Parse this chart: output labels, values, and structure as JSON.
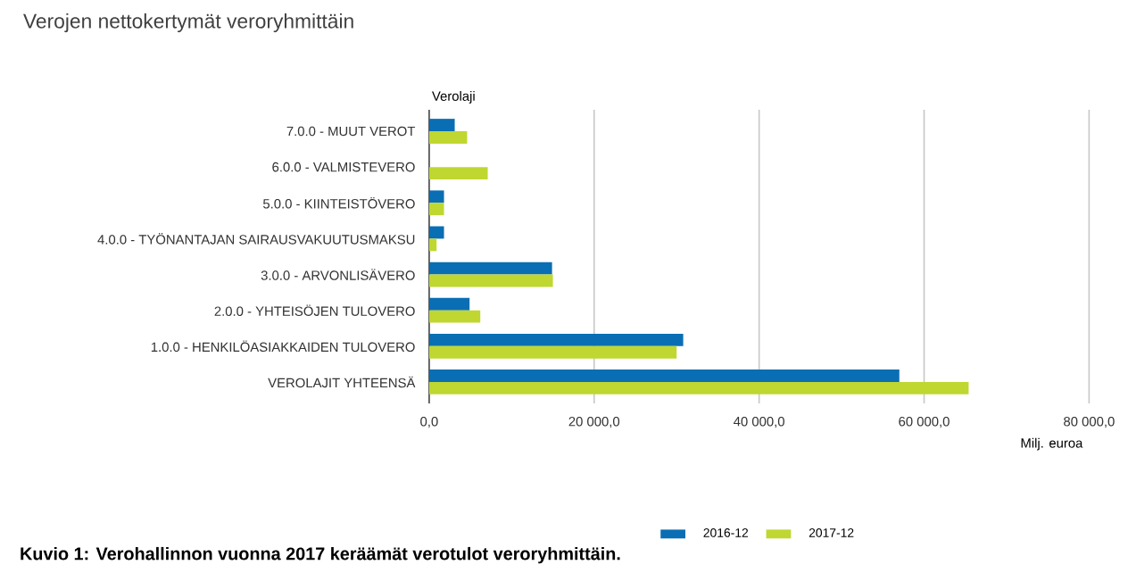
{
  "chart_data": {
    "type": "bar",
    "orientation": "horizontal",
    "title": "Verojen nettokertymät veroryhmittäin",
    "xlabel": "Milj. euroa",
    "ylabel": "Verolaji",
    "annotations": [
      "**Kuvio 1: Verohallinnon vuonna 2017 keräämät verotulot veroryhmittäin.**"
    ],
    "categories": [
      "7.0.0 - MUUT VEROT",
      "6.0.0 - VALMISTEVERO",
      "5.0.0 - KIINTEISTÖVERO",
      "4.0.0 - TYÖNANTAJAN SAIRAUSVAKUUTUSMAKSU",
      "3.0.0 - ARVONLISÄVERO",
      "2.0.0 - YHTEISÖJEN TULOVERO",
      "1.0.0 - HENKILÖASIAKKAIDEN TULOVERO",
      "VEROLAJIT YHTEENSÄ"
    ],
    "series": [
      {
        "name": "2016-12",
        "color": "#0a6eb4",
        "values": [
          3100,
          null,
          1800,
          1800,
          14900,
          4900,
          30800,
          57000
        ]
      },
      {
        "name": "2017-12",
        "color": "#bfd730",
        "values": [
          4600,
          7100,
          1800,
          900,
          15000,
          6200,
          30000,
          65400
        ]
      }
    ],
    "xlim": [
      0,
      80000
    ],
    "xticks": [
      {
        "value": 0,
        "label": "0,0"
      },
      {
        "value": 20000,
        "label": "20 000,0"
      },
      {
        "value": 40000,
        "label": "40 000,0"
      },
      {
        "value": 60000,
        "label": "60 000,0"
      },
      {
        "value": 80000,
        "label": "80 000,0"
      }
    ],
    "grid": "x",
    "legend": "bottom"
  }
}
